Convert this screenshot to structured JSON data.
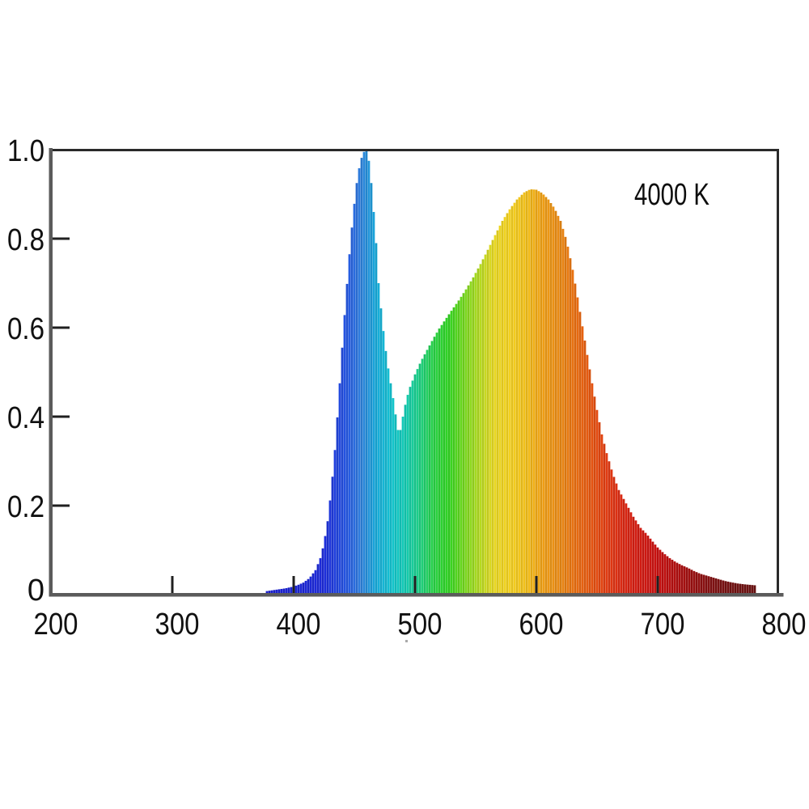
{
  "figure": {
    "annotation_label": "4000 K"
  },
  "colors": {
    "background": "#ffffff",
    "axis_gray": "#5b5b5b",
    "frame_black": "#2a2a2a",
    "tick_mark": "#202020",
    "label_text": "#111111"
  },
  "chart_data": {
    "type": "area",
    "title": "",
    "xlabel": "",
    "ylabel": "",
    "annotation": "4000 K",
    "x_ticks": [
      200,
      300,
      400,
      500,
      600,
      700,
      800
    ],
    "y_ticks": [
      "0",
      "0.2",
      "0.4",
      "0.6",
      "0.8",
      "1.0"
    ],
    "xlim": [
      200,
      800
    ],
    "ylim": [
      0,
      1.0
    ],
    "grid": false,
    "legend": false,
    "series_description": "Normalized spectral power distribution of a 4000 K white LED: narrow blue pump peak (max 1.0 near 460 nm), dip to ~0.35 near 487 nm, broad phosphor peak ~0.91 near 595 nm, tail to ~780 nm; area filled with per-wavelength spectrum colors",
    "points": [
      [
        378,
        0.008
      ],
      [
        383,
        0.01
      ],
      [
        388,
        0.012
      ],
      [
        393,
        0.014
      ],
      [
        398,
        0.017
      ],
      [
        403,
        0.021
      ],
      [
        408,
        0.027
      ],
      [
        413,
        0.037
      ],
      [
        418,
        0.055
      ],
      [
        422,
        0.082
      ],
      [
        425,
        0.115
      ],
      [
        428,
        0.165
      ],
      [
        431,
        0.235
      ],
      [
        434,
        0.325
      ],
      [
        437,
        0.435
      ],
      [
        440,
        0.555
      ],
      [
        443,
        0.665
      ],
      [
        446,
        0.765
      ],
      [
        449,
        0.855
      ],
      [
        452,
        0.925
      ],
      [
        455,
        0.975
      ],
      [
        458,
        0.995
      ],
      [
        460,
        1.0
      ],
      [
        462,
        0.975
      ],
      [
        464,
        0.925
      ],
      [
        466,
        0.86
      ],
      [
        468,
        0.79
      ],
      [
        470,
        0.7
      ],
      [
        473,
        0.615
      ],
      [
        477,
        0.525
      ],
      [
        480,
        0.475
      ],
      [
        483,
        0.425
      ],
      [
        485,
        0.385
      ],
      [
        487,
        0.355
      ],
      [
        490,
        0.4
      ],
      [
        493,
        0.44
      ],
      [
        496,
        0.467
      ],
      [
        500,
        0.495
      ],
      [
        505,
        0.525
      ],
      [
        510,
        0.55
      ],
      [
        515,
        0.575
      ],
      [
        520,
        0.598
      ],
      [
        525,
        0.618
      ],
      [
        530,
        0.638
      ],
      [
        536,
        0.661
      ],
      [
        542,
        0.686
      ],
      [
        548,
        0.713
      ],
      [
        554,
        0.743
      ],
      [
        560,
        0.775
      ],
      [
        566,
        0.808
      ],
      [
        572,
        0.84
      ],
      [
        578,
        0.866
      ],
      [
        584,
        0.888
      ],
      [
        590,
        0.904
      ],
      [
        595,
        0.911
      ],
      [
        600,
        0.91
      ],
      [
        605,
        0.902
      ],
      [
        610,
        0.888
      ],
      [
        615,
        0.868
      ],
      [
        620,
        0.84
      ],
      [
        625,
        0.795
      ],
      [
        630,
        0.73
      ],
      [
        634,
        0.668
      ],
      [
        638,
        0.603
      ],
      [
        641,
        0.555
      ],
      [
        645,
        0.49
      ],
      [
        650,
        0.415
      ],
      [
        654,
        0.36
      ],
      [
        658,
        0.318
      ],
      [
        663,
        0.272
      ],
      [
        668,
        0.235
      ],
      [
        674,
        0.205
      ],
      [
        680,
        0.175
      ],
      [
        686,
        0.15
      ],
      [
        691,
        0.136
      ],
      [
        696,
        0.119
      ],
      [
        700,
        0.106
      ],
      [
        705,
        0.093
      ],
      [
        710,
        0.082
      ],
      [
        715,
        0.073
      ],
      [
        720,
        0.066
      ],
      [
        725,
        0.06
      ],
      [
        730,
        0.053
      ],
      [
        735,
        0.047
      ],
      [
        740,
        0.043
      ],
      [
        745,
        0.039
      ],
      [
        750,
        0.035
      ],
      [
        755,
        0.031
      ],
      [
        760,
        0.028
      ],
      [
        766,
        0.025
      ],
      [
        772,
        0.023
      ],
      [
        780,
        0.021
      ]
    ],
    "spectrum_color_stops": [
      [
        378,
        "#191dc6"
      ],
      [
        425,
        "#1c2ad2"
      ],
      [
        445,
        "#2456da"
      ],
      [
        455,
        "#2d7ad4"
      ],
      [
        468,
        "#16a4d2"
      ],
      [
        480,
        "#12bcc9"
      ],
      [
        492,
        "#13c4ad"
      ],
      [
        503,
        "#1bc782"
      ],
      [
        515,
        "#27ca45"
      ],
      [
        528,
        "#2fcc1f"
      ],
      [
        540,
        "#6ed01d"
      ],
      [
        552,
        "#a8d31e"
      ],
      [
        565,
        "#e0d020"
      ],
      [
        578,
        "#ecca1d"
      ],
      [
        592,
        "#eab818"
      ],
      [
        605,
        "#e79a14"
      ],
      [
        620,
        "#e08313"
      ],
      [
        632,
        "#e06a10"
      ],
      [
        645,
        "#dd5210"
      ],
      [
        658,
        "#d93a11"
      ],
      [
        670,
        "#d32812"
      ],
      [
        684,
        "#cb1a11"
      ],
      [
        700,
        "#c11010"
      ],
      [
        715,
        "#ab0f0f"
      ],
      [
        730,
        "#920f10"
      ],
      [
        745,
        "#7b1011"
      ],
      [
        762,
        "#6d1111"
      ],
      [
        780,
        "#671212"
      ]
    ]
  }
}
